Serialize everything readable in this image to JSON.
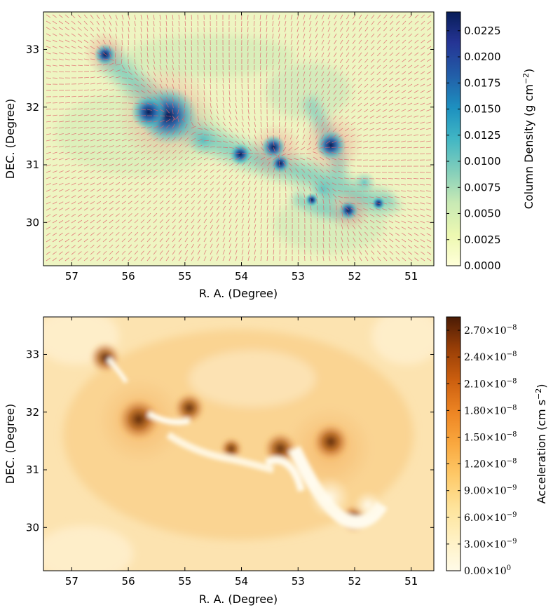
{
  "chart_data": [
    {
      "type": "heatmap",
      "overlay": "vector-field (red arrows)",
      "title": "",
      "xlabel": "R. A. (Degree)",
      "ylabel": "DEC. (Degree)",
      "xlim": [
        57.5,
        50.6
      ],
      "ylim": [
        29.25,
        33.65
      ],
      "x_ticks": [
        57,
        56,
        55,
        54,
        53,
        52,
        51
      ],
      "y_ticks": [
        30,
        31,
        32,
        33
      ],
      "colormap": "YlGnBu",
      "colors": {
        "low": "#ffffd9",
        "mid": "#41b6c4",
        "high": "#081d58",
        "arrow": "#e0606a"
      },
      "colorbar": {
        "label": "Column Density (g cm",
        "label_sup": "−2",
        "label_close": ")",
        "range": [
          0,
          0.0243
        ],
        "ticks": [
          0.0,
          0.0025,
          0.005,
          0.0075,
          0.01,
          0.0125,
          0.015,
          0.0175,
          0.02,
          0.0225
        ],
        "tick_labels": [
          "0.0000",
          "0.0025",
          "0.0050",
          "0.0075",
          "0.0100",
          "0.0125",
          "0.0150",
          "0.0175",
          "0.0200",
          "0.0225"
        ]
      },
      "peaks": [
        {
          "ra": 56.4,
          "dec": 32.9,
          "value": 0.02
        },
        {
          "ra": 55.3,
          "dec": 31.85,
          "value": 0.024
        },
        {
          "ra": 54.0,
          "dec": 31.2,
          "value": 0.02
        },
        {
          "ra": 53.35,
          "dec": 31.2,
          "value": 0.021
        },
        {
          "ra": 53.3,
          "dec": 31.05,
          "value": 0.019
        },
        {
          "ra": 52.45,
          "dec": 31.35,
          "value": 0.023
        },
        {
          "ra": 52.1,
          "dec": 30.2,
          "value": 0.02
        }
      ]
    },
    {
      "type": "heatmap",
      "title": "",
      "xlabel": "R. A. (Degree)",
      "ylabel": "DEC. (Degree)",
      "xlim": [
        57.5,
        50.6
      ],
      "ylim": [
        29.25,
        33.65
      ],
      "x_ticks": [
        57,
        56,
        55,
        54,
        53,
        52,
        51
      ],
      "y_ticks": [
        30,
        31,
        32,
        33
      ],
      "colormap": "YlOrBr",
      "colors": {
        "low": "#fff7e0",
        "mid": "#f5b04a",
        "high": "#4a1b05"
      },
      "colorbar": {
        "label": "Acceleration (cm s",
        "label_sup": "−2",
        "label_close": ")",
        "range": [
          0,
          2.85e-08
        ],
        "ticks": [
          0,
          3e-09,
          6e-09,
          9e-09,
          1.2e-08,
          1.5e-08,
          1.8e-08,
          2.1e-08,
          2.4e-08,
          2.7e-08
        ],
        "tick_mantissa": [
          "0.00",
          "3.00",
          "6.00",
          "9.00",
          "1.20",
          "1.50",
          "1.80",
          "2.10",
          "2.40",
          "2.70"
        ],
        "tick_exponent": [
          "0",
          "−9",
          "−9",
          "−9",
          "−8",
          "−8",
          "−8",
          "−8",
          "−8",
          "−8"
        ]
      }
    }
  ]
}
